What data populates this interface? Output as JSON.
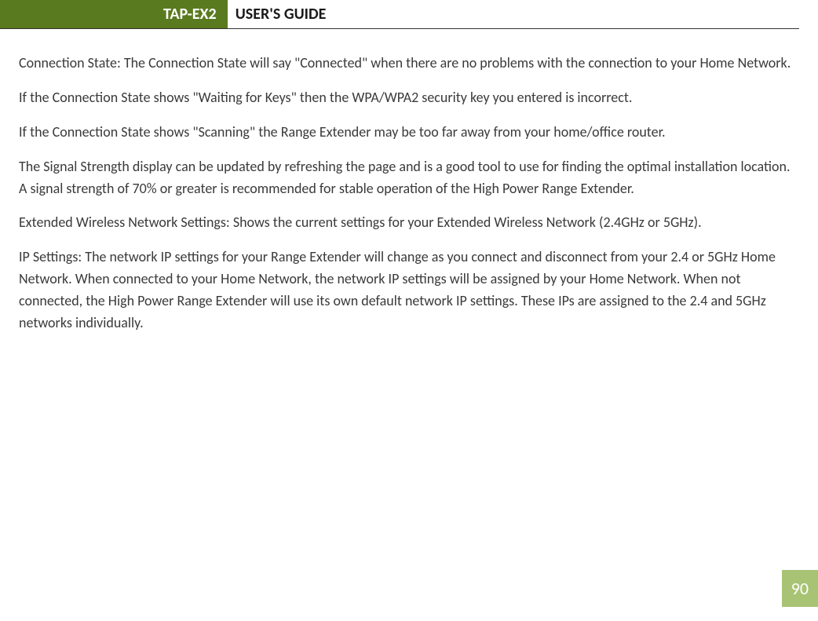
{
  "header": {
    "badge": "TAP-EX2",
    "title": "USER'S GUIDE",
    "badge_bg": "#5a7a1f",
    "badge_fg": "#ffffff",
    "rule_color": "#333333"
  },
  "paragraphs": [
    "Connection State: The Connection State will say \"Connected\" when there are no problems with the connection to your Home Network.",
    "If the Connection State shows \"Waiting for Keys\" then the WPA/WPA2 security key you entered is incorrect.",
    "If the Connection State shows \"Scanning\" the Range Extender may be too far away from your home/office router.",
    "The Signal Strength display can be updated by refreshing the page and is a good tool to use for finding the optimal installation location. A signal strength of 70% or greater is recommended for stable operation of the High Power Range Extender.",
    "Extended Wireless Network Settings: Shows the current settings for your Extended Wireless Network (2.4GHz or 5GHz).",
    "IP Settings:  The network IP settings for your Range Extender will change as you connect and disconnect from your 2.4 or 5GHz Home Network. When connected to your Home Network, the network IP settings will be assigned by your Home Network. When not connected, the High Power Range Extender will use its own default network IP settings.  These IPs are assigned to the 2.4 and 5GHz networks individually."
  ],
  "page_number": "90",
  "page_number_bg": "#a8c373",
  "page_number_fg": "#ffffff",
  "text_color": "#3a3a3a",
  "font_size_body": 18,
  "font_size_header": 20,
  "font_size_pagenum": 22
}
